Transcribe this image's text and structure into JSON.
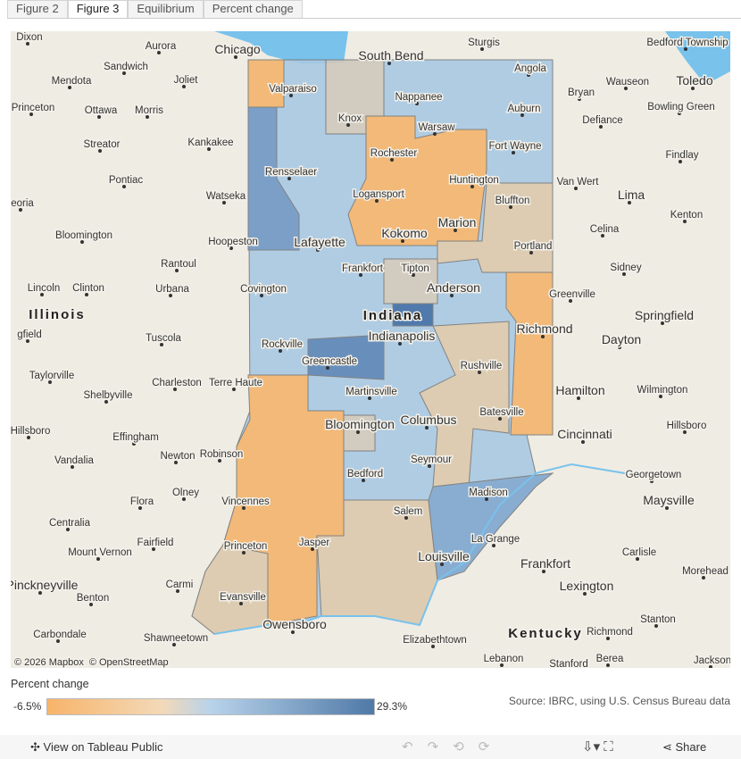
{
  "tabs": [
    "Figure 2",
    "Figure 3",
    "Equilibrium",
    "Percent change"
  ],
  "map": {
    "places": [
      "Dixon",
      "Aurora",
      "Chicago",
      "Sturgis",
      "Sandwich",
      "Mendota",
      "Joliet",
      "Valparaiso",
      "South Bend",
      "Angola",
      "Wauseon",
      "Toledo",
      "Bedford Township",
      "Bryan",
      "Princeton",
      "Ottawa",
      "Morris",
      "Knox",
      "Nappanee",
      "Auburn",
      "Bowling Green",
      "Defiance",
      "Warsaw",
      "Kankakee",
      "Streator",
      "Rochester",
      "Fort Wayne",
      "Findlay",
      "Pontiac",
      "Rensselaer",
      "Huntington",
      "Bluffton",
      "Van Wert",
      "Watseka",
      "Logansport",
      "Lima",
      "eoria",
      "Kenton",
      "Marion",
      "Bloomington",
      "Kokomo",
      "Celina",
      "Hoopeston",
      "Lafayette",
      "Portland",
      "Rantoul",
      "Tipton",
      "Frankfort",
      "Sidney",
      "Lincoln",
      "Clinton",
      "Urbana",
      "Covington",
      "Anderson",
      "Greenville",
      "Springfield",
      "Richmond",
      "gfield",
      "Tuscola",
      "Indianapolis",
      "Dayton",
      "Rockville",
      "Greencastle",
      "Rushville",
      "Taylorville",
      "Charleston",
      "Terre Haute",
      "Martinsville",
      "Hamilton",
      "Wilmington",
      "Shelbyville",
      "Columbus",
      "Batesville",
      "Bloomington",
      "Hillsboro",
      "Effingham",
      "Cincinnati",
      "Hillsboro",
      "Vandalia",
      "Newton",
      "Robinson",
      "Seymour",
      "Georgetown",
      "Bedford",
      "Madison",
      "Olney",
      "Flora",
      "Vincennes",
      "Maysville",
      "Salem",
      "Centralia",
      "Fairfield",
      "La Grange",
      "Princeton",
      "Jasper",
      "Mount Vernon",
      "Louisville",
      "Carlisle",
      "Frankfort",
      "Carmi",
      "Pinckneyville",
      "Evansville",
      "Lexington",
      "Morehead",
      "Benton",
      "Stanton",
      "Carbondale",
      "Shawneetown",
      "Owensboro",
      "Richmond",
      "Elizabethtown",
      "Lebanon",
      "Stanford",
      "Berea",
      "Jackson"
    ],
    "states": [
      "Illinois",
      "Indiana",
      "Kentucky"
    ],
    "attribution": [
      "© 2026 Mapbox",
      "© OpenStreetMap"
    ]
  },
  "legend": {
    "title": "Percent change",
    "min_label": "-6.5%",
    "max_label": "29.3%"
  },
  "source": "Source: IBRC, using U.S. Census Bureau data",
  "toolbar": {
    "view": "View on Tableau Public",
    "share": "Share"
  }
}
